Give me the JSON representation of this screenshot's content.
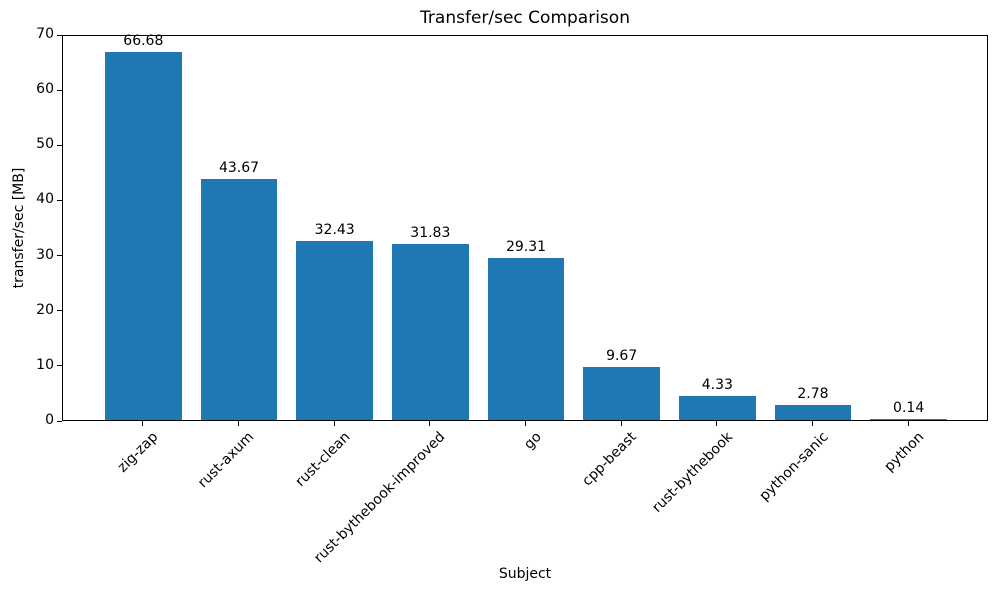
{
  "chart_data": {
    "type": "bar",
    "title": "Transfer/sec Comparison",
    "xlabel": "Subject",
    "ylabel": "transfer/sec [MB]",
    "categories": [
      "zig-zap",
      "rust-axum",
      "rust-clean",
      "rust-bythebook-improved",
      "go",
      "cpp-beast",
      "rust-bythebook",
      "python-sanic",
      "python"
    ],
    "values": [
      66.68,
      43.67,
      32.43,
      31.83,
      29.31,
      9.67,
      4.33,
      2.78,
      0.14
    ],
    "bar_labels": [
      "66.68",
      "43.67",
      "32.43",
      "31.83",
      "29.31",
      "9.67",
      "4.33",
      "2.78",
      "0.14"
    ],
    "ylim": [
      0,
      70
    ],
    "yticks": [
      0,
      10,
      20,
      30,
      40,
      50,
      60,
      70
    ],
    "bar_color": "#1f77b4",
    "grid": false,
    "legend_position": "none"
  }
}
